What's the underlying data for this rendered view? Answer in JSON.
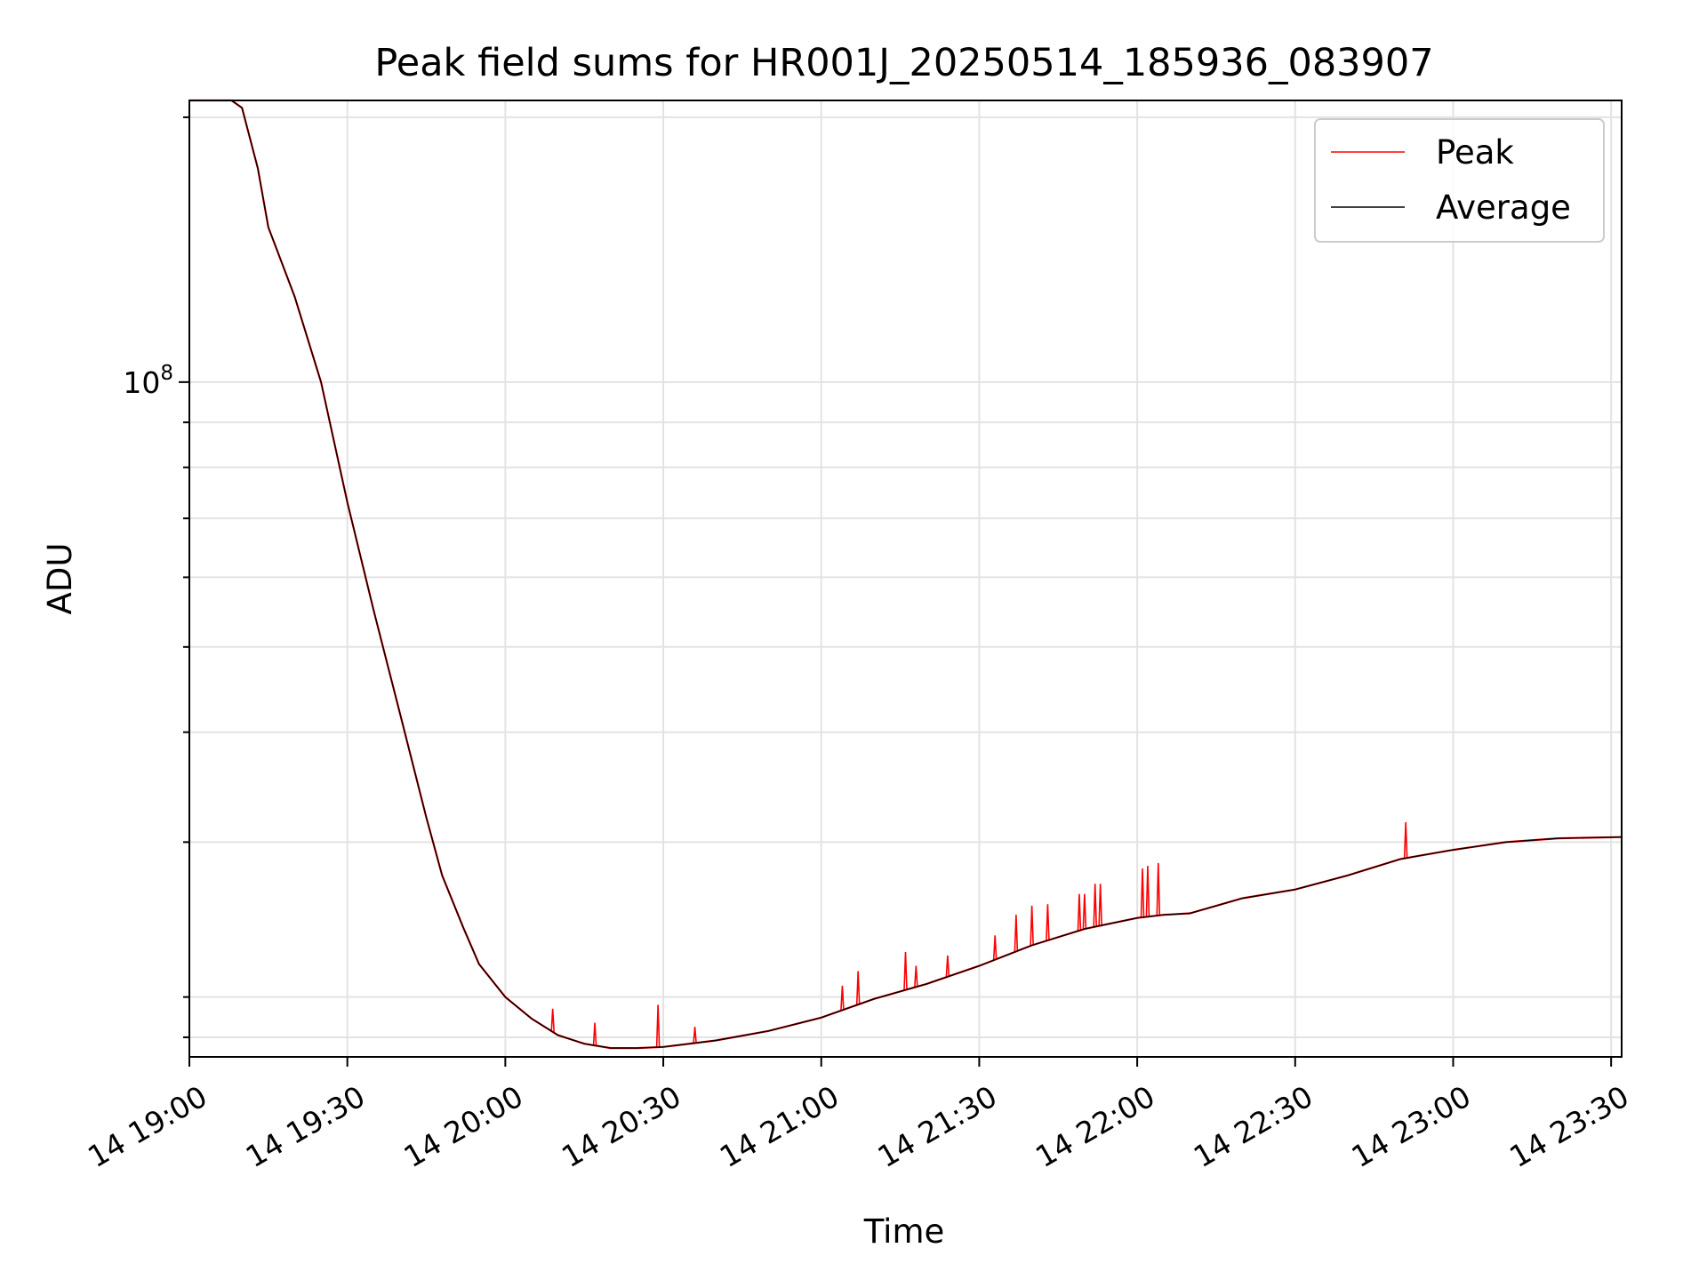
{
  "chart_data": {
    "type": "line",
    "title": "Peak field sums for HR001J_20250514_185936_083907",
    "xlabel": "Time",
    "ylabel": "ADU",
    "x_type": "time",
    "xlim": [
      "14 19:00",
      "14 23:32"
    ],
    "yscale": "log",
    "ylim": [
      17100000,
      209000000
    ],
    "grid": true,
    "legend_position": "top-right",
    "x_tick_labels": [
      "14 19:00",
      "14 19:30",
      "14 20:00",
      "14 20:30",
      "14 21:00",
      "14 21:30",
      "14 22:00",
      "14 22:30",
      "14 23:00",
      "14 23:30"
    ],
    "y_tick_labels": [
      {
        "value": 100000000,
        "base": "10",
        "exp": "8"
      }
    ],
    "y_minor_ticks": [
      18000000,
      20000000,
      30000000,
      40000000,
      50000000,
      60000000,
      70000000,
      80000000,
      90000000,
      200000000
    ],
    "series": [
      {
        "name": "Average",
        "color": "#000000",
        "points": [
          [
            "14 19:00",
            209000000
          ],
          [
            "14 19:08",
            209000000
          ],
          [
            "14 19:10",
            205000000
          ],
          [
            "14 19:13",
            175000000
          ],
          [
            "14 19:15",
            150000000
          ],
          [
            "14 19:20",
            125000000
          ],
          [
            "14 19:25",
            100000000
          ],
          [
            "14 19:30",
            73000000
          ],
          [
            "14 19:35",
            55000000
          ],
          [
            "14 19:40",
            42000000
          ],
          [
            "14 19:45",
            32000000
          ],
          [
            "14 19:48",
            27500000
          ],
          [
            "14 19:52",
            24000000
          ],
          [
            "14 19:55",
            21800000
          ],
          [
            "14 20:00",
            20000000
          ],
          [
            "14 20:05",
            18900000
          ],
          [
            "14 20:10",
            18100000
          ],
          [
            "14 20:15",
            17700000
          ],
          [
            "14 20:20",
            17500000
          ],
          [
            "14 20:25",
            17500000
          ],
          [
            "14 20:30",
            17550000
          ],
          [
            "14 20:40",
            17850000
          ],
          [
            "14 20:50",
            18300000
          ],
          [
            "14 21:00",
            18950000
          ],
          [
            "14 21:10",
            19900000
          ],
          [
            "14 21:20",
            20700000
          ],
          [
            "14 21:30",
            21700000
          ],
          [
            "14 21:40",
            22900000
          ],
          [
            "14 21:50",
            23900000
          ],
          [
            "14 22:00",
            24600000
          ],
          [
            "14 22:05",
            24800000
          ],
          [
            "14 22:10",
            24900000
          ],
          [
            "14 22:20",
            25900000
          ],
          [
            "14 22:30",
            26500000
          ],
          [
            "14 22:40",
            27500000
          ],
          [
            "14 22:50",
            28700000
          ],
          [
            "14 23:00",
            29400000
          ],
          [
            "14 23:10",
            30000000
          ],
          [
            "14 23:20",
            30300000
          ],
          [
            "14 23:32",
            30400000
          ]
        ]
      },
      {
        "name": "Peak",
        "color": "#ff0000",
        "spikes": [
          [
            "14 20:09",
            19400000
          ],
          [
            "14 20:17",
            18700000
          ],
          [
            "14 20:29",
            19600000
          ],
          [
            "14 20:36",
            18500000
          ],
          [
            "14 21:04",
            20600000
          ],
          [
            "14 21:07",
            21400000
          ],
          [
            "14 21:16",
            22500000
          ],
          [
            "14 21:18",
            21700000
          ],
          [
            "14 21:24",
            22300000
          ],
          [
            "14 21:33",
            23500000
          ],
          [
            "14 21:37",
            24800000
          ],
          [
            "14 21:40",
            25400000
          ],
          [
            "14 21:43",
            25500000
          ],
          [
            "14 21:49",
            26200000
          ],
          [
            "14 21:50",
            26200000
          ],
          [
            "14 21:52",
            26900000
          ],
          [
            "14 21:53",
            26900000
          ],
          [
            "14 22:01",
            28000000
          ],
          [
            "14 22:02",
            28200000
          ],
          [
            "14 22:04",
            28400000
          ],
          [
            "14 22:51",
            31600000
          ]
        ]
      }
    ]
  }
}
